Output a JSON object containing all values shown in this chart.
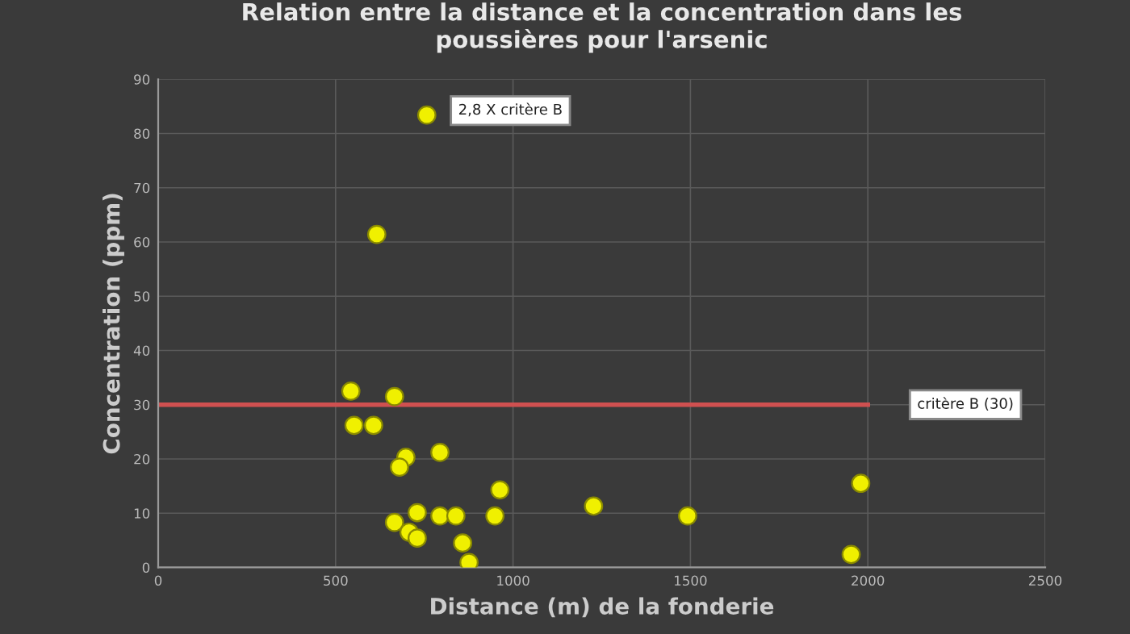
{
  "chart_data": {
    "type": "scatter",
    "title": "Relation entre la distance et la concentration dans les\npoussières pour l'arsenic",
    "xlabel": "Distance (m) de la fonderie",
    "ylabel": "Concentration (ppm)",
    "series": [
      {
        "color": "#f0f000",
        "marker": "circle",
        "x": [
          757,
          616,
          543,
          666,
          552,
          607,
          698,
          680,
          794,
          963,
          666,
          730,
          707,
          730,
          794,
          839,
          858,
          876,
          949,
          1227,
          1492,
          1953,
          1980
        ],
        "values": [
          83.4,
          61.4,
          32.5,
          31.5,
          26.2,
          26.2,
          20.3,
          18.5,
          21.2,
          14.3,
          8.3,
          10.1,
          6.5,
          5.4,
          9.5,
          9.5,
          4.5,
          0.9,
          9.5,
          11.3,
          9.5,
          2.4,
          15.5
        ]
      },
      {
        "type": "line",
        "color": "#d05050",
        "x": [
          0,
          2000
        ],
        "values": [
          30,
          30
        ]
      }
    ],
    "annotations": [
      {
        "text": "2,8 X critère B",
        "x": 757,
        "y": 83.4
      },
      "critère B (30)"
    ],
    "xlim": [
      0,
      2500
    ],
    "xticks": [
      0,
      500,
      1000,
      1500,
      2000,
      2500
    ],
    "ylim": [
      0,
      90
    ],
    "yticks": [
      0,
      10,
      20,
      30,
      40,
      50,
      60,
      70,
      80,
      90
    ],
    "grid": true
  }
}
